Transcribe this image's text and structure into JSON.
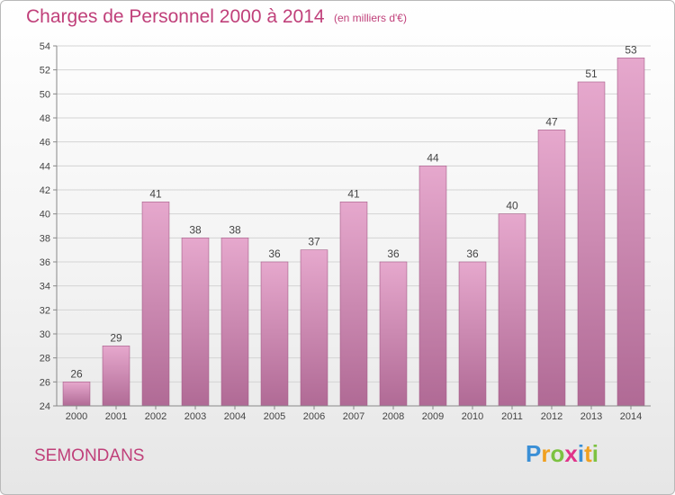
{
  "title": "Charges de Personnel 2000 à 2014",
  "subtitle": "(en milliers d'€)",
  "commune": "SEMONDANS",
  "logo": {
    "text": "Proxiti",
    "letters": [
      {
        "ch": "P",
        "color": "#3a8fd6"
      },
      {
        "ch": "r",
        "color": "#f0a020"
      },
      {
        "ch": "o",
        "color": "#7cc242"
      },
      {
        "ch": "x",
        "color": "#e0338a"
      },
      {
        "ch": "i",
        "color": "#3a8fd6"
      },
      {
        "ch": "t",
        "color": "#f0a020"
      },
      {
        "ch": "i",
        "color": "#7cc242"
      }
    ]
  },
  "colors": {
    "accent": "#c0407a",
    "bar_top": "#e6a8cd",
    "bar_bottom": "#b06a95",
    "bar_edge": "#a55c88"
  },
  "chart_data": {
    "type": "bar",
    "title": "Charges de Personnel 2000 à 2014",
    "subtitle": "(en milliers d'€)",
    "xlabel": "",
    "ylabel": "",
    "categories": [
      "2000",
      "2001",
      "2002",
      "2003",
      "2004",
      "2005",
      "2006",
      "2007",
      "2008",
      "2009",
      "2010",
      "2011",
      "2012",
      "2013",
      "2014"
    ],
    "values": [
      26,
      29,
      41,
      38,
      38,
      36,
      37,
      41,
      36,
      44,
      36,
      40,
      47,
      51,
      53
    ],
    "ylim": [
      24,
      54
    ],
    "yticks": [
      24,
      26,
      28,
      30,
      32,
      34,
      36,
      38,
      40,
      42,
      44,
      46,
      48,
      50,
      52,
      54
    ],
    "grid": true,
    "data_labels": true
  }
}
